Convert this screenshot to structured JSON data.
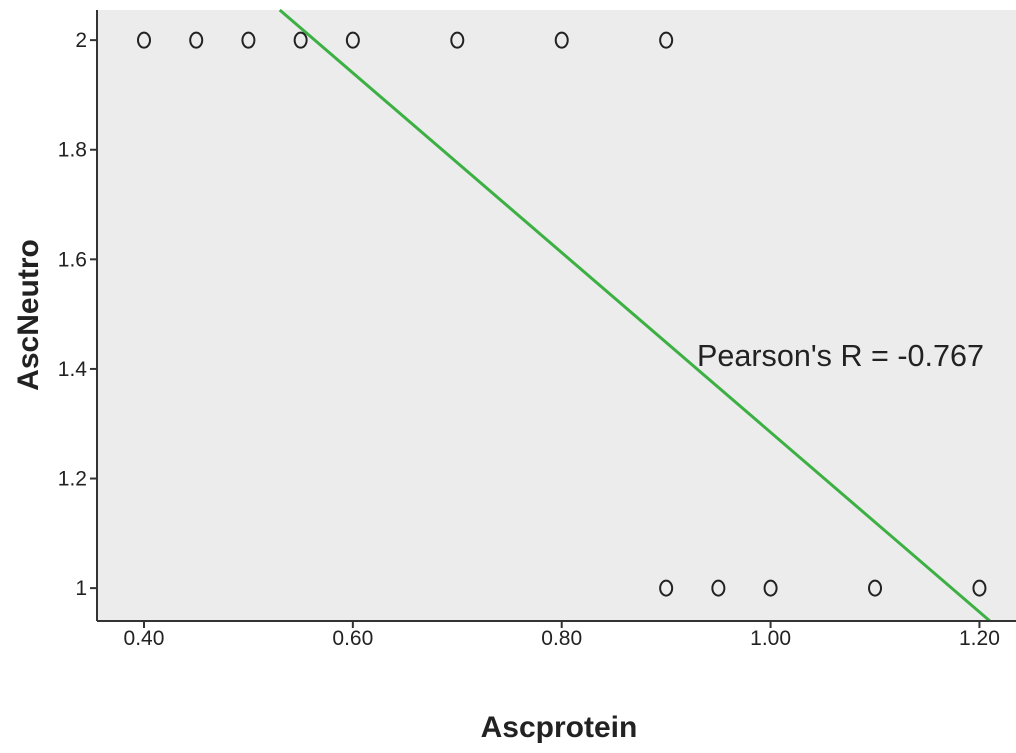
{
  "chart_data": {
    "type": "scatter",
    "title": "",
    "xlabel": "Ascprotein",
    "ylabel": "AscNeutro",
    "xlim": [
      0.355,
      1.235
    ],
    "ylim": [
      0.94,
      2.055
    ],
    "x_ticks": [
      {
        "value": 0.4,
        "label": "0.40"
      },
      {
        "value": 0.6,
        "label": "0.60"
      },
      {
        "value": 0.8,
        "label": "0.80"
      },
      {
        "value": 1.0,
        "label": "1.00"
      },
      {
        "value": 1.2,
        "label": "1.20"
      }
    ],
    "y_ticks": [
      {
        "value": 1.0,
        "label": "1"
      },
      {
        "value": 1.2,
        "label": "1.2"
      },
      {
        "value": 1.4,
        "label": "1.4"
      },
      {
        "value": 1.6,
        "label": "1.6"
      },
      {
        "value": 1.8,
        "label": "1.8"
      },
      {
        "value": 2.0,
        "label": "2"
      }
    ],
    "grid": false,
    "points": [
      {
        "x": 0.4,
        "y": 2
      },
      {
        "x": 0.45,
        "y": 2
      },
      {
        "x": 0.5,
        "y": 2
      },
      {
        "x": 0.55,
        "y": 2
      },
      {
        "x": 0.6,
        "y": 2
      },
      {
        "x": 0.7,
        "y": 2
      },
      {
        "x": 0.8,
        "y": 2
      },
      {
        "x": 0.9,
        "y": 2
      },
      {
        "x": 0.9,
        "y": 1
      },
      {
        "x": 0.95,
        "y": 1
      },
      {
        "x": 1.0,
        "y": 1
      },
      {
        "x": 1.1,
        "y": 1
      },
      {
        "x": 1.2,
        "y": 1
      }
    ],
    "fit_line": {
      "from": {
        "x": 0.53,
        "y": 2.055
      },
      "to": {
        "x": 1.21,
        "y": 0.94
      },
      "color": "#3cb043"
    },
    "annotation": "Pearson's R = -0.767",
    "colors": {
      "plot_background": "#ececec",
      "marker_stroke": "#222222",
      "axis": "#333333"
    }
  }
}
